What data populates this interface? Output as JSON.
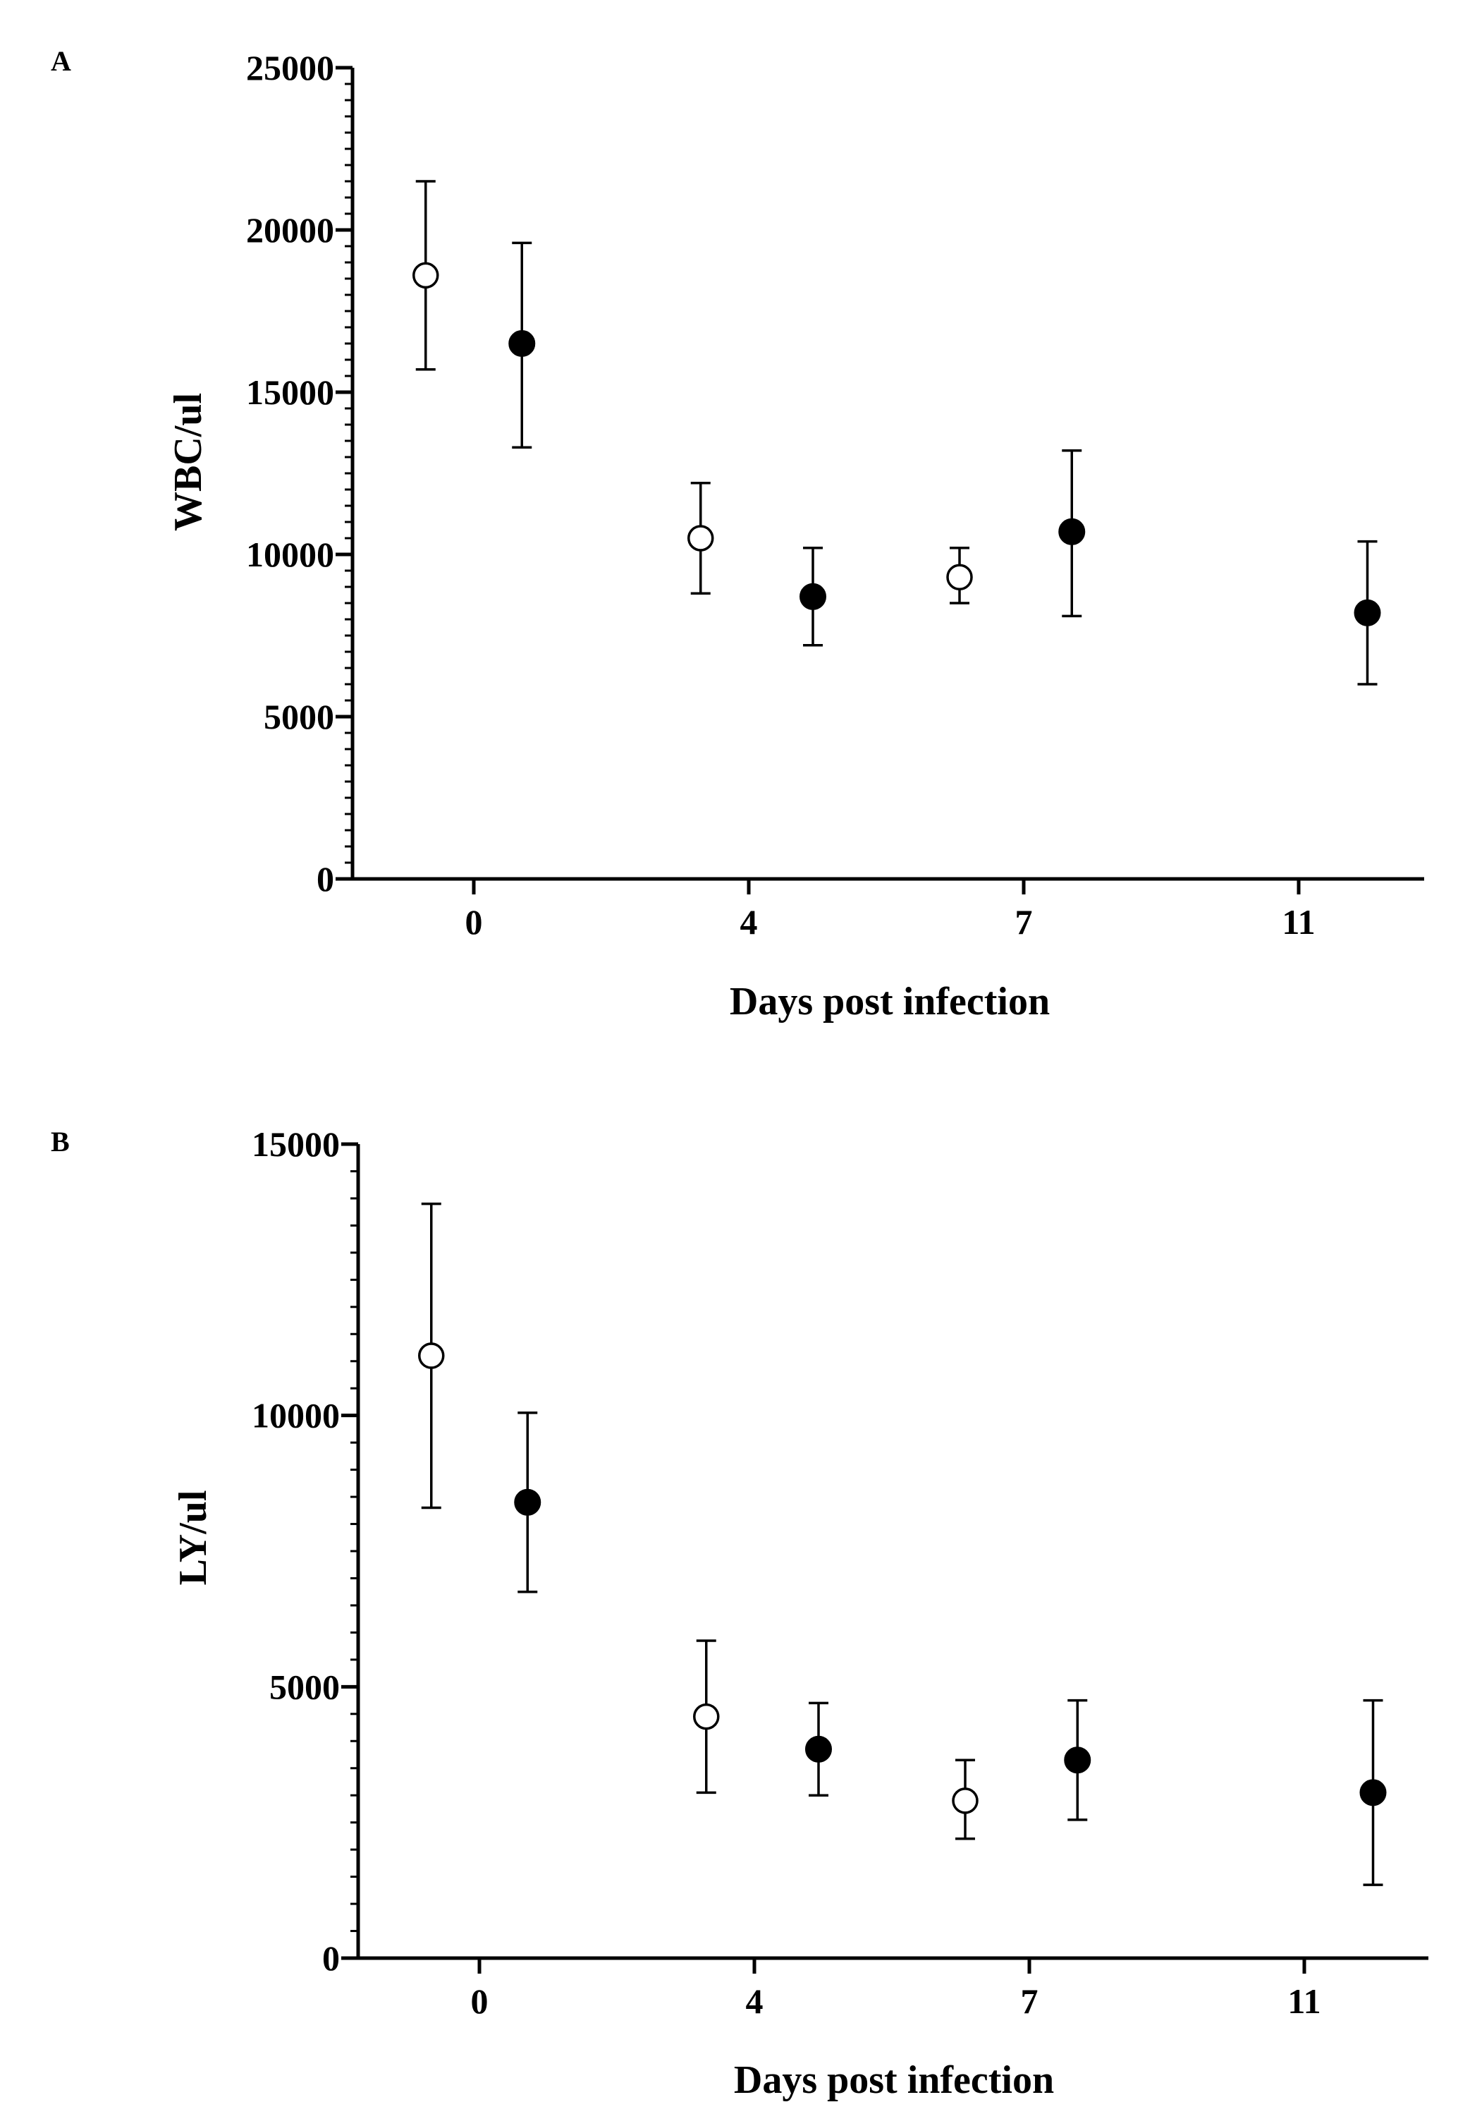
{
  "chart_data": [
    {
      "panel_label": "A",
      "type": "scatter",
      "ylabel": "WBC/ul",
      "xlabel": "Days post infection",
      "x_ticks": [
        "0",
        "4",
        "7",
        "11"
      ],
      "y_ticks": [
        "0",
        "5000",
        "10000",
        "15000",
        "20000",
        "25000"
      ],
      "ylim": [
        0,
        25000
      ],
      "series": [
        {
          "name": "open",
          "marker": "open-circle",
          "points": [
            {
              "x": -0.7,
              "y": 18600,
              "lo": 15700,
              "hi": 21500
            },
            {
              "x": 3.3,
              "y": 10500,
              "lo": 8800,
              "hi": 12200
            },
            {
              "x": 6.3,
              "y": 9300,
              "lo": 8500,
              "hi": 10200
            }
          ]
        },
        {
          "name": "filled",
          "marker": "filled-circle",
          "points": [
            {
              "x": 0.7,
              "y": 16500,
              "lo": 13300,
              "hi": 19600
            },
            {
              "x": 4.7,
              "y": 8700,
              "lo": 7200,
              "hi": 10200
            },
            {
              "x": 7.7,
              "y": 10700,
              "lo": 8100,
              "hi": 13200
            },
            {
              "x": 12.0,
              "y": 8200,
              "lo": 6000,
              "hi": 10400
            }
          ]
        }
      ]
    },
    {
      "panel_label": "B",
      "type": "scatter",
      "ylabel": "LY/ul",
      "xlabel": "Days post infection",
      "x_ticks": [
        "0",
        "4",
        "7",
        "11"
      ],
      "y_ticks": [
        "0",
        "5000",
        "10000",
        "15000"
      ],
      "ylim": [
        0,
        15000
      ],
      "series": [
        {
          "name": "open",
          "marker": "open-circle",
          "points": [
            {
              "x": -0.7,
              "y": 11100,
              "lo": 8300,
              "hi": 13900
            },
            {
              "x": 3.3,
              "y": 4450,
              "lo": 3050,
              "hi": 5850
            },
            {
              "x": 6.3,
              "y": 2900,
              "lo": 2200,
              "hi": 3650
            }
          ]
        },
        {
          "name": "filled",
          "marker": "filled-circle",
          "points": [
            {
              "x": 0.7,
              "y": 8400,
              "lo": 6750,
              "hi": 10050
            },
            {
              "x": 4.7,
              "y": 3850,
              "lo": 3000,
              "hi": 4700
            },
            {
              "x": 7.7,
              "y": 3650,
              "lo": 2550,
              "hi": 4750
            },
            {
              "x": 12.0,
              "y": 3050,
              "lo": 1350,
              "hi": 4750
            }
          ]
        }
      ]
    }
  ]
}
